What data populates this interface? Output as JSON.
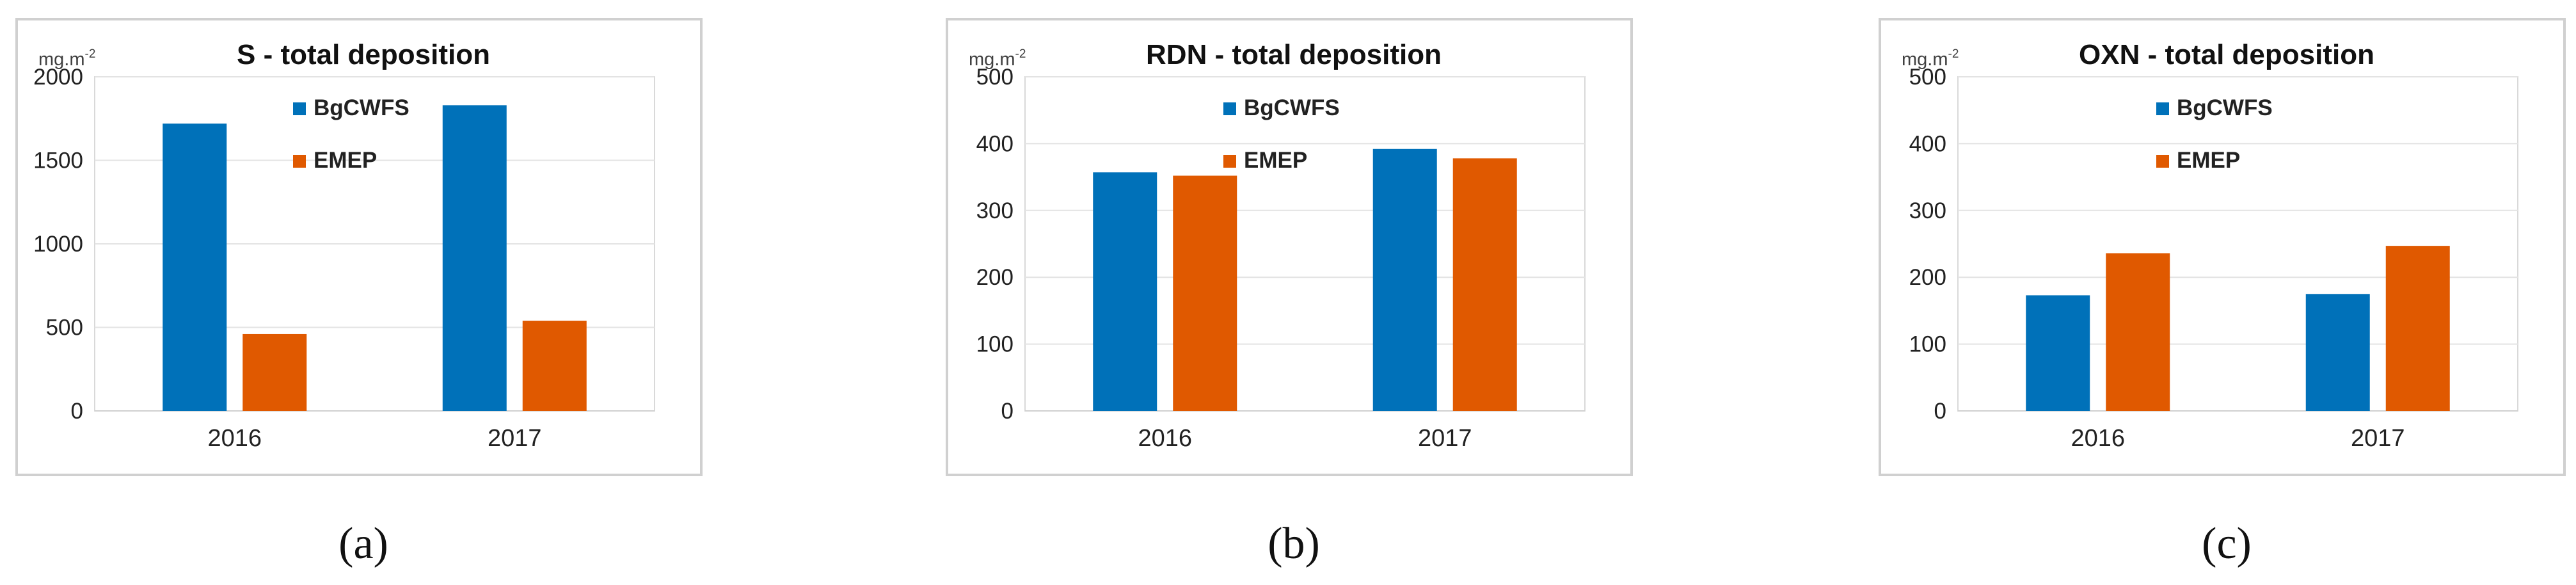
{
  "colors": {
    "bgcwfs": "#0071b9",
    "emep": "#e05900"
  },
  "panels": [
    {
      "caption": "(a)",
      "chart_data": {
        "type": "bar",
        "title": "S - total deposition",
        "ylabel_main": "mg.m",
        "ylabel_sup": "-2",
        "categories": [
          "2016",
          "2017"
        ],
        "series": [
          {
            "name": "BgCWFS",
            "values": [
              1720,
              1830
            ]
          },
          {
            "name": "EMEP",
            "values": [
              460,
              540
            ]
          }
        ],
        "ylim": [
          0,
          2000
        ],
        "yticks": [
          0,
          500,
          1000,
          1500,
          2000
        ],
        "yticks_labels": [
          "0",
          "500",
          "1000",
          "1500",
          "2000"
        ],
        "legend": "top-center",
        "grid": true
      }
    },
    {
      "caption": "(b)",
      "chart_data": {
        "type": "bar",
        "title": "RDN - total deposition",
        "ylabel_main": "mg.m",
        "ylabel_sup": "-2",
        "categories": [
          "2016",
          "2017"
        ],
        "series": [
          {
            "name": "BgCWFS",
            "values": [
              357,
              392
            ]
          },
          {
            "name": "EMEP",
            "values": [
              352,
              378
            ]
          }
        ],
        "ylim": [
          0,
          500
        ],
        "yticks": [
          0,
          100,
          200,
          300,
          400,
          500
        ],
        "yticks_labels": [
          "0",
          "100",
          "200",
          "300",
          "400",
          "500"
        ],
        "legend": "top-center",
        "grid": true
      }
    },
    {
      "caption": "(c)",
      "chart_data": {
        "type": "bar",
        "title": "OXN - total deposition",
        "ylabel_main": "mg.m",
        "ylabel_sup": "-2",
        "categories": [
          "2016",
          "2017"
        ],
        "series": [
          {
            "name": "BgCWFS",
            "values": [
              173,
              175
            ]
          },
          {
            "name": "EMEP",
            "values": [
              236,
              247
            ]
          }
        ],
        "ylim": [
          0,
          500
        ],
        "yticks": [
          0,
          100,
          200,
          300,
          400,
          500
        ],
        "yticks_labels": [
          "0",
          "100",
          "200",
          "300",
          "400",
          "500"
        ],
        "legend": "top-center",
        "grid": true
      }
    }
  ]
}
